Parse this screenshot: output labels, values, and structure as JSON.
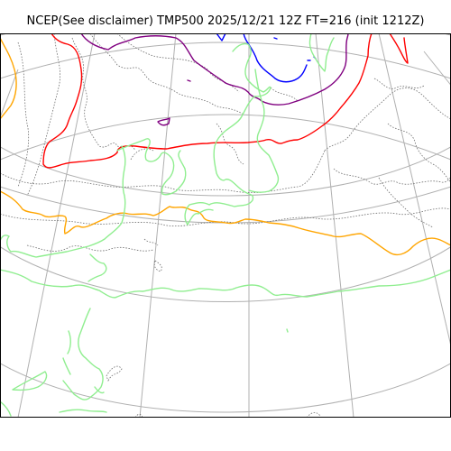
{
  "title": "NCEP(See disclaimer) TMP500 2025/12/21 12Z FT=216 (init 1212Z)",
  "colors": {
    "graticule": "#b0b0b0",
    "coastline": "#707070",
    "isotherm_purple": "#800080",
    "isotherm_blue": "#0000ff",
    "isotherm_red": "#ff0000",
    "isotherm_orange": "#ffa500",
    "isotherm_green": "#90ee90",
    "frame": "#000000"
  }
}
